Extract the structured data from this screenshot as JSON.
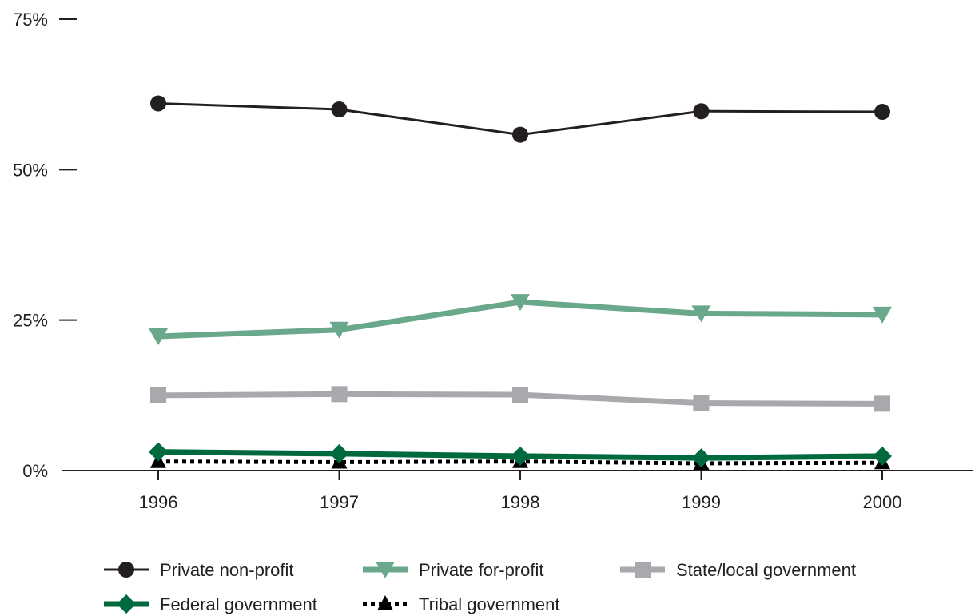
{
  "chart_data": {
    "type": "line",
    "title": "",
    "xlabel": "",
    "ylabel": "",
    "x": [
      1996,
      1997,
      1998,
      1999,
      2000
    ],
    "x_tick_labels": [
      "1996",
      "1997",
      "1998",
      "1999",
      "2000"
    ],
    "y_tick_values": [
      0,
      25,
      50,
      75
    ],
    "y_tick_labels": [
      "0%",
      "25%",
      "50%",
      "75%"
    ],
    "ylim": [
      0,
      75
    ],
    "grid": false,
    "legend_position": "bottom",
    "series": [
      {
        "name": "Private non-profit",
        "values": [
          61.0,
          60.0,
          55.8,
          59.7,
          59.6
        ],
        "color": "#231f20",
        "marker": "circle",
        "line_style": "solid-thin"
      },
      {
        "name": "Private for-profit",
        "values": [
          22.3,
          23.4,
          28.0,
          26.1,
          25.9
        ],
        "color": "#6aa88c",
        "marker": "triangle-down",
        "line_style": "solid-thick"
      },
      {
        "name": "State/local government",
        "values": [
          12.5,
          12.7,
          12.6,
          11.2,
          11.1
        ],
        "color": "#a7a9ac",
        "marker": "square",
        "line_style": "solid-thick"
      },
      {
        "name": "Federal government",
        "values": [
          3.1,
          2.8,
          2.4,
          2.1,
          2.4
        ],
        "color": "#00693e",
        "marker": "diamond",
        "line_style": "solid-thick"
      },
      {
        "name": "Tribal government",
        "values": [
          1.5,
          1.4,
          1.5,
          1.2,
          1.3
        ],
        "color": "#000000",
        "marker": "triangle-up",
        "line_style": "dotted"
      }
    ]
  }
}
